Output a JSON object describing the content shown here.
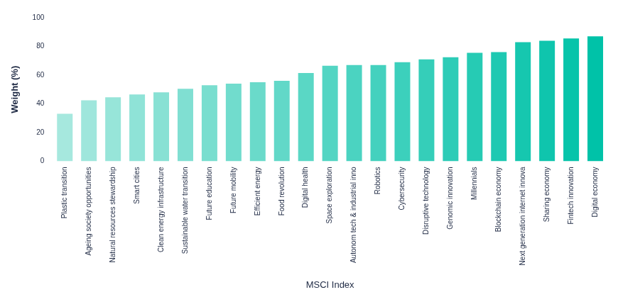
{
  "chart_data": {
    "type": "bar",
    "x_label": "MSCI Index",
    "y_label": "Weight (%)",
    "categories": [
      "Plastic transition",
      "Ageing society opportunities",
      "Natural resources stewardship",
      "Smart cities",
      "Clean energy infrastructure",
      "Sustainable water transition",
      "Future education",
      "Future mobility",
      "Efficient energy",
      "Food revolution",
      "Digital health",
      "Space exploration",
      "Autonom tech & industrial inno",
      "Robotics",
      "Cybersecurity",
      "Disruptive technology",
      "Genomic innovation",
      "Millennials",
      "Blockchain economy",
      "Next generation internet innova",
      "Sharing economy",
      "Fintech innovation",
      "Digital economy"
    ],
    "values": [
      33,
      42.5,
      44.5,
      46.5,
      48,
      50.5,
      53,
      54,
      55,
      56,
      61.5,
      66.5,
      67,
      67,
      69,
      71,
      72.5,
      75.5,
      76,
      83,
      84,
      85.5,
      87
    ],
    "colors": [
      "#a6e8de",
      "#9fe6dc",
      "#97e5d9",
      "#8fe3d7",
      "#88e1d4",
      "#80dfd2",
      "#79decf",
      "#71dccd",
      "#6adaca",
      "#62d8c8",
      "#5ad7c5",
      "#53d5c3",
      "#4bd3c1",
      "#44d1be",
      "#3cd0bc",
      "#35ceb9",
      "#2dccb7",
      "#26cbb4",
      "#1ec9b2",
      "#16c7af",
      "#0fc5ad",
      "#07c4aa",
      "#00c2a8"
    ],
    "ylim": [
      0,
      100
    ],
    "yticks": [
      0,
      20,
      40,
      60,
      80,
      100
    ],
    "grid": false
  }
}
